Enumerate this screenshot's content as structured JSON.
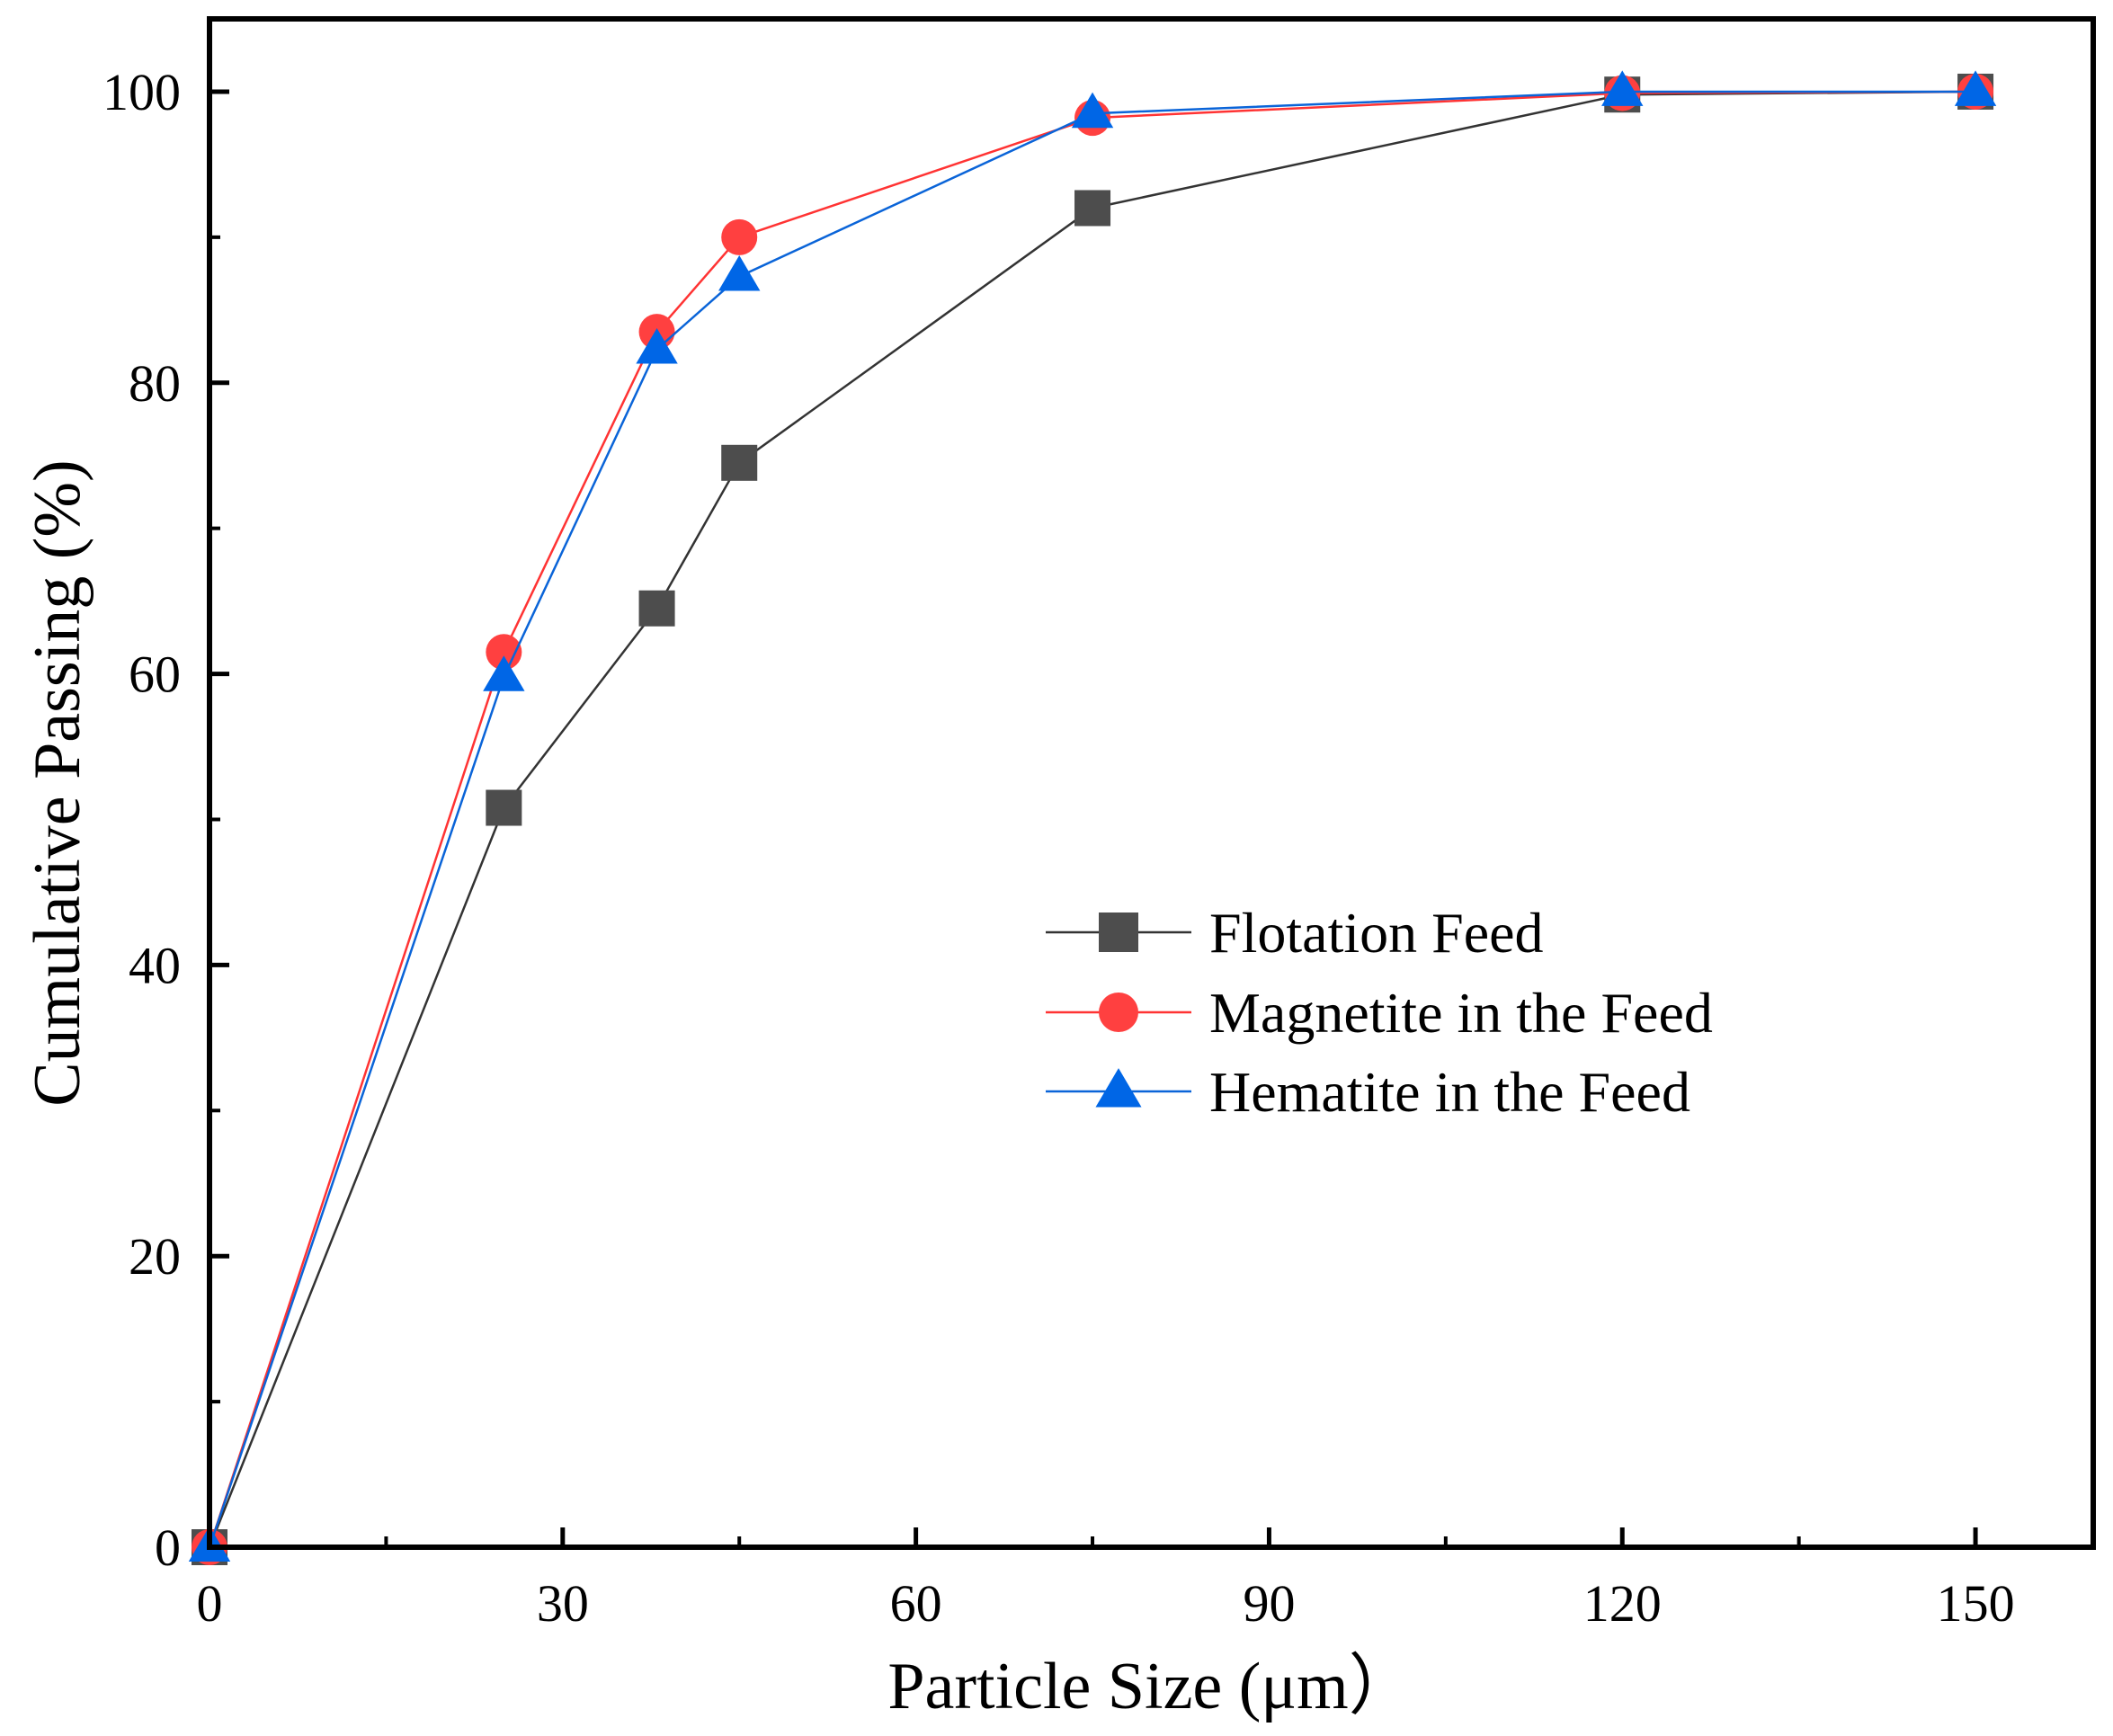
{
  "chart_data": {
    "type": "line",
    "title": "",
    "xlabel": "Particle Size (μm）",
    "ylabel": "Cumulative Passing (%)",
    "xlim": [
      0,
      160
    ],
    "ylim": [
      0,
      105
    ],
    "xticks": [
      0,
      30,
      60,
      90,
      120,
      150
    ],
    "yticks": [
      0,
      20,
      40,
      60,
      80,
      100
    ],
    "grid": false,
    "legend_position": "center-right",
    "x": [
      0,
      25,
      38,
      45,
      75,
      120,
      150
    ],
    "series": [
      {
        "name": "Flotation Feed",
        "marker": "square",
        "color": "#4d4d4d",
        "line_color": "#333333",
        "values": [
          0,
          50.8,
          64.5,
          74.5,
          92.0,
          99.8,
          100
        ]
      },
      {
        "name": "Magnetite in the Feed",
        "marker": "circle",
        "color": "#ff4040",
        "line_color": "#ff3333",
        "values": [
          0,
          61.5,
          83.5,
          90.0,
          98.2,
          99.9,
          100
        ]
      },
      {
        "name": "Hematite in the Feed",
        "marker": "triangle",
        "color": "#0066e6",
        "line_color": "#0a64d8",
        "values": [
          0,
          59.8,
          82.3,
          87.3,
          98.5,
          100,
          100
        ]
      }
    ]
  }
}
